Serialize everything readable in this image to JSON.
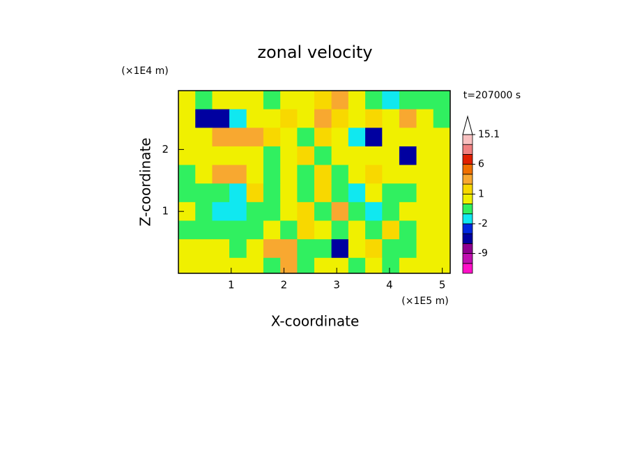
{
  "chart_data": {
    "type": "contour",
    "title": "zonal velocity",
    "y_unit": "(×1E4 m)",
    "x_unit": "(×1E5 m)",
    "time_label": "t=207000 s",
    "xlabel": "X-coordinate",
    "ylabel": "Z-coordinate",
    "xlim": [
      0,
      5.15
    ],
    "ylim": [
      0,
      2.95
    ],
    "xticks": [
      1,
      2,
      3,
      4,
      5
    ],
    "yticks": [
      1,
      2
    ],
    "x": [
      0.16,
      0.48,
      0.8,
      1.13,
      1.45,
      1.77,
      2.09,
      2.41,
      2.74,
      3.06,
      3.38,
      3.7,
      4.02,
      4.35,
      4.67,
      4.99
    ],
    "y": [
      2.8,
      2.5,
      2.2,
      1.9,
      1.6,
      1.3,
      1.0,
      0.7,
      0.4,
      0.1
    ],
    "z": [
      [
        0.5,
        -0.5,
        0.5,
        0.5,
        0.5,
        -0.5,
        0.5,
        0.5,
        1.5,
        2.5,
        0.5,
        -0.5,
        -1.5,
        -0.5,
        -0.5,
        -0.5
      ],
      [
        0.5,
        -4,
        -4,
        -1.5,
        0.5,
        0.5,
        1.5,
        0.5,
        2.5,
        1.5,
        0.5,
        1.5,
        0.5,
        2.5,
        0.5,
        -0.5
      ],
      [
        0.5,
        0.5,
        2.5,
        2.5,
        2.5,
        1.5,
        0.5,
        -0.5,
        1.5,
        0.5,
        -1.5,
        -4,
        0.5,
        0.5,
        0.5,
        0.5
      ],
      [
        0.5,
        0.5,
        0.5,
        0.5,
        0.5,
        -0.5,
        0.5,
        1.5,
        -0.5,
        0.5,
        0.5,
        0.5,
        0.5,
        -4,
        0.5,
        0.5
      ],
      [
        -0.5,
        0.5,
        2.5,
        2.5,
        0.5,
        -0.5,
        0.5,
        -0.5,
        1.5,
        -0.5,
        0.5,
        1.5,
        0.5,
        0.5,
        0.5,
        0.5
      ],
      [
        -0.5,
        -0.5,
        -0.5,
        -1.5,
        1.5,
        -0.5,
        0.5,
        -0.5,
        1.5,
        -0.5,
        -1.5,
        0.5,
        -0.5,
        -0.5,
        0.5,
        0.5
      ],
      [
        0.5,
        -0.5,
        -1.5,
        -1.5,
        -0.5,
        -0.5,
        0.5,
        1.5,
        -0.5,
        2.5,
        -0.5,
        -1.5,
        -0.5,
        0.5,
        0.5,
        0.5
      ],
      [
        -0.5,
        -0.5,
        -0.5,
        -0.5,
        -0.5,
        0.5,
        -0.5,
        1.5,
        0.5,
        -0.5,
        0.5,
        -0.5,
        1.5,
        -0.5,
        0.5,
        0.5
      ],
      [
        0.5,
        0.5,
        0.5,
        -0.5,
        0.5,
        2.5,
        2.5,
        -0.5,
        -0.5,
        -4,
        0.5,
        1.5,
        -0.5,
        -0.5,
        0.5,
        0.5
      ],
      [
        0.5,
        0.5,
        0.5,
        0.5,
        0.5,
        -0.5,
        2.5,
        -0.5,
        0.5,
        0.5,
        -0.5,
        0.5,
        -0.5,
        0.5,
        0.5,
        0.5
      ]
    ],
    "levels": [
      -15,
      -12,
      -9,
      -6,
      -3,
      -2,
      -1,
      0,
      1,
      2,
      3,
      6,
      9,
      12,
      15.1
    ],
    "colors": [
      "#ff10c8",
      "#c010b0",
      "#900090",
      "#0000a0",
      "#0028e0",
      "#10e8f0",
      "#30f060",
      "#f0f000",
      "#f8d800",
      "#f8a830",
      "#f07000",
      "#e02000",
      "#f08080",
      "#f8c0c0"
    ],
    "colorbar_ticks": [
      -9,
      -2,
      1,
      6,
      15.1
    ]
  }
}
